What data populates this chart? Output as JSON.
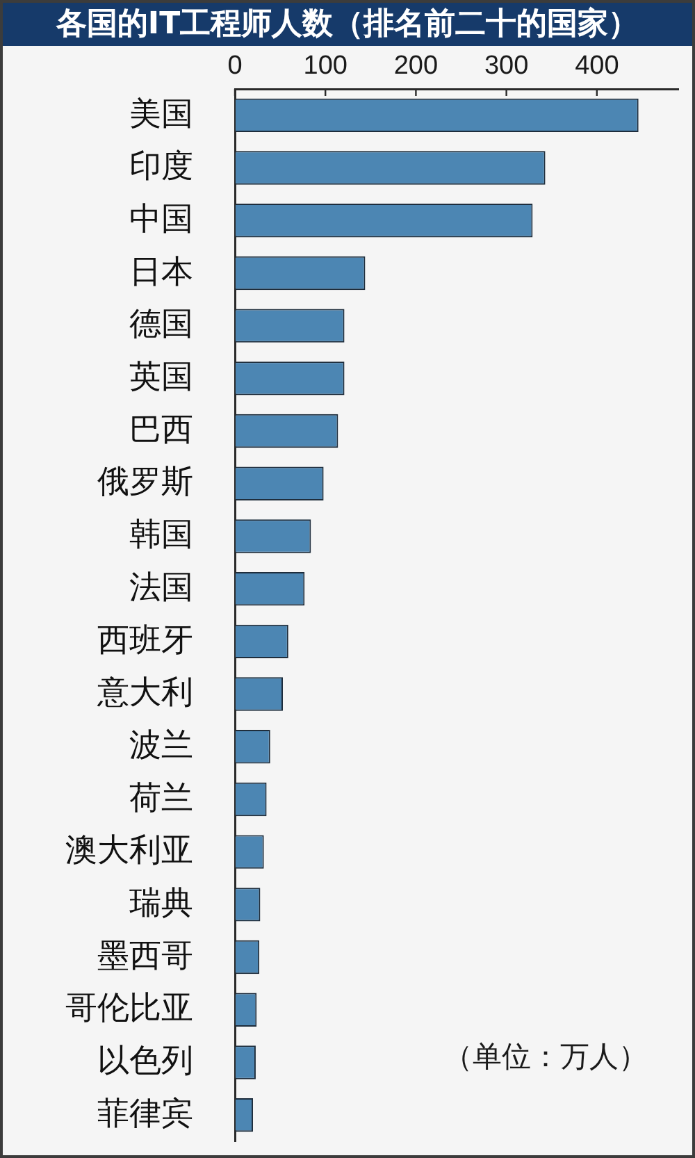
{
  "chart_data": {
    "type": "bar",
    "orientation": "horizontal",
    "title": "各国的IT工程师人数（排名前二十的国家）",
    "categories": [
      "美国",
      "印度",
      "中国",
      "日本",
      "德国",
      "英国",
      "巴西",
      "俄罗斯",
      "韩国",
      "法国",
      "西班牙",
      "意大利",
      "波兰",
      "荷兰",
      "澳大利亚",
      "瑞典",
      "墨西哥",
      "哥伦比亚",
      "以色列",
      "菲律宾"
    ],
    "values": [
      446,
      343,
      329,
      144,
      121,
      121,
      114,
      98,
      84,
      77,
      59,
      53,
      39,
      35,
      32,
      28,
      27,
      24,
      23,
      20
    ],
    "color": "#4c86b3",
    "xlim": [
      0,
      490
    ],
    "xticks": [
      0,
      100,
      200,
      300,
      400
    ],
    "annotations": [
      "（单位：万人）"
    ]
  }
}
